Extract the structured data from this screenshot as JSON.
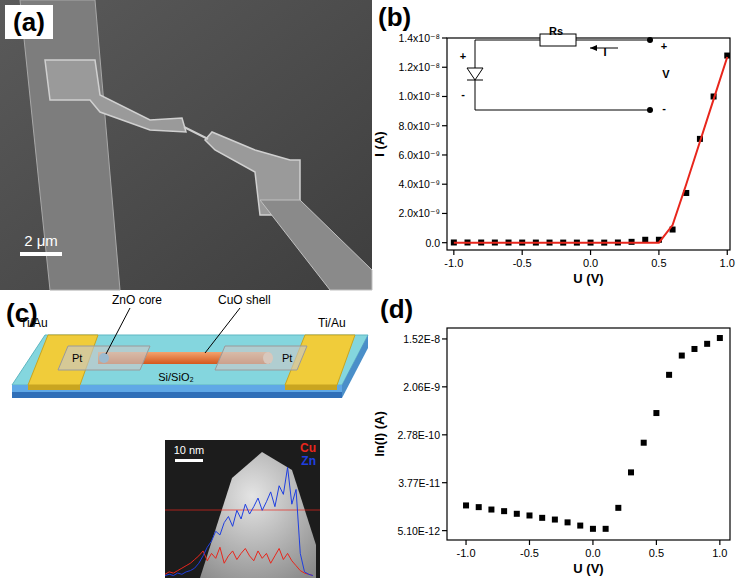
{
  "panels": [
    "(a)",
    "(b)",
    "(c)",
    "(d)"
  ],
  "sem_image": {
    "scale_bar": "2 μm"
  },
  "schematic": {
    "labels": {
      "electrode_left": "Ti/Au",
      "electrode_right": "Ti/Au",
      "core": "ZnO core",
      "shell": "CuO shell",
      "pad_left": "Pt",
      "pad_right": "Pt",
      "substrate": "Si/SiO₂"
    }
  },
  "tem_image": {
    "scale_bar": "10 nm"
  },
  "chart_data": [
    {
      "type": "scatter",
      "xlabel": "U (V)",
      "ylabel": "I (A)",
      "x": [
        -1.0,
        -0.9,
        -0.8,
        -0.7,
        -0.6,
        -0.5,
        -0.4,
        -0.3,
        -0.2,
        -0.1,
        0.0,
        0.1,
        0.2,
        0.3,
        0.4,
        0.5,
        0.6,
        0.7,
        0.8,
        0.9,
        1.0
      ],
      "xlim": [
        -1.05,
        1.02
      ],
      "ylim": [
        -5e-10,
        1.4e-08
      ],
      "xticks": [
        {
          "value": -1,
          "label": "-1.0"
        },
        {
          "value": -0.5,
          "label": "-0.5"
        },
        {
          "value": 0,
          "label": "0.0"
        },
        {
          "value": 0.5,
          "label": "0.5"
        },
        {
          "value": 1,
          "label": "1.0"
        }
      ],
      "yticks": [
        {
          "value": 0,
          "label": "0.0"
        },
        {
          "value": 2e-09,
          "label": "2.0x10⁻⁹"
        },
        {
          "value": 4e-09,
          "label": "4.0x10⁻⁹"
        },
        {
          "value": 6e-09,
          "label": "6.0x10⁻⁹"
        },
        {
          "value": 8e-09,
          "label": "8.0x10⁻⁹"
        },
        {
          "value": 1e-08,
          "label": "1.0x10⁻⁸"
        },
        {
          "value": 1.2e-08,
          "label": "1.2x10⁻⁸"
        },
        {
          "value": 1.4e-08,
          "label": "1.4x10⁻⁸"
        }
      ],
      "series": [
        {
          "type": "scatter",
          "color": "#000000",
          "marker": "square",
          "values": [
            1.46e-11,
            1.36e-11,
            1.23e-11,
            1.15e-11,
            1.03e-11,
            9.6e-12,
            8.7e-12,
            8.1e-12,
            7.2e-12,
            6.3e-12,
            5.5e-12,
            5.5e-12,
            1.32e-11,
            5.8e-11,
            2e-10,
            2e-10,
            9e-10,
            3.4e-09,
            7.1e-09,
            1e-08,
            1.28e-08
          ]
        },
        {
          "type": "line",
          "color": "#e8261c",
          "line_style": "solid",
          "values": [
            0,
            0,
            0,
            0,
            0,
            0,
            0,
            0,
            0,
            0,
            0,
            0,
            0,
            0,
            0,
            0,
            1.2e-09,
            4e-09,
            6.9e-09,
            9.8e-09,
            1.27e-08
          ]
        }
      ],
      "annotations": [
        "+",
        "-",
        "Rs",
        "I",
        "+",
        "V",
        "-"
      ]
    },
    {
      "type": "scatter",
      "log": "y",
      "xlabel": "U (V)",
      "ylabel": "ln(I) (A)",
      "x": [
        -1.0,
        -0.9,
        -0.8,
        -0.7,
        -0.6,
        -0.5,
        -0.4,
        -0.3,
        -0.2,
        -0.1,
        0.0,
        0.1,
        0.2,
        0.3,
        0.4,
        0.5,
        0.6,
        0.7,
        0.8,
        0.9,
        1.0
      ],
      "xlim": [
        -1.15,
        1.08
      ],
      "ylim": [
        3.45e-12,
        2.4e-08
      ],
      "xticks": [
        {
          "value": -1,
          "label": "-1.0"
        },
        {
          "value": -0.5,
          "label": "-0.5"
        },
        {
          "value": 0,
          "label": "0.0"
        },
        {
          "value": 0.5,
          "label": "0.5"
        },
        {
          "value": 1,
          "label": "1.0"
        }
      ],
      "yticks": [
        {
          "value": 5.1e-12,
          "label": "5.10E-12"
        },
        {
          "value": 3.77e-11,
          "label": "3.77E-11"
        },
        {
          "value": 2.78e-10,
          "label": "2.78E-10"
        },
        {
          "value": 2.06e-09,
          "label": "2.06E-9"
        },
        {
          "value": 1.52e-08,
          "label": "1.52E-8"
        }
      ],
      "series": [
        {
          "color": "#000000",
          "marker": "square",
          "values": [
            1.46e-11,
            1.36e-11,
            1.23e-11,
            1.15e-11,
            1.03e-11,
            9.6e-12,
            8.7e-12,
            8.1e-12,
            7.2e-12,
            6.3e-12,
            5.5e-12,
            5.5e-12,
            1.32e-11,
            5.8e-11,
            2e-10,
            6.9e-10,
            3.4e-09,
            7.6e-09,
            1e-08,
            1.24e-08,
            1.58e-08
          ]
        }
      ]
    },
    {
      "type": "line",
      "tick_labels": false,
      "legend": "upper right",
      "x": [
        0,
        1.5,
        3,
        4.5,
        6,
        7.5,
        9,
        10.5,
        12,
        13.5,
        15,
        16.5,
        18,
        19.5,
        21,
        22.5,
        24,
        25.5,
        27,
        28.5,
        30,
        31.5,
        33,
        34.5,
        36,
        37.5,
        39,
        40.5,
        42,
        43.5,
        45,
        46.5,
        48,
        49.5,
        51,
        52.5
      ],
      "xlim": [
        0,
        55
      ],
      "ylim": [
        0,
        100
      ],
      "series": [
        {
          "name": "Cu",
          "color": "#e8261c",
          "values": [
            3,
            5,
            4,
            6,
            8,
            10,
            12,
            15,
            18,
            22,
            14,
            20,
            16,
            25,
            12,
            18,
            22,
            15,
            20,
            24,
            18,
            14,
            22,
            16,
            20,
            12,
            18,
            24,
            15,
            20,
            14,
            10,
            6,
            4,
            3,
            2
          ]
        },
        {
          "name": "Zn",
          "color": "#1f3fe0",
          "values": [
            2,
            3,
            2,
            4,
            3,
            5,
            6,
            8,
            12,
            18,
            25,
            30,
            38,
            35,
            45,
            50,
            42,
            55,
            48,
            60,
            52,
            58,
            65,
            55,
            62,
            70,
            58,
            75,
            68,
            90,
            60,
            72,
            20,
            5,
            3,
            2
          ]
        }
      ]
    }
  ]
}
